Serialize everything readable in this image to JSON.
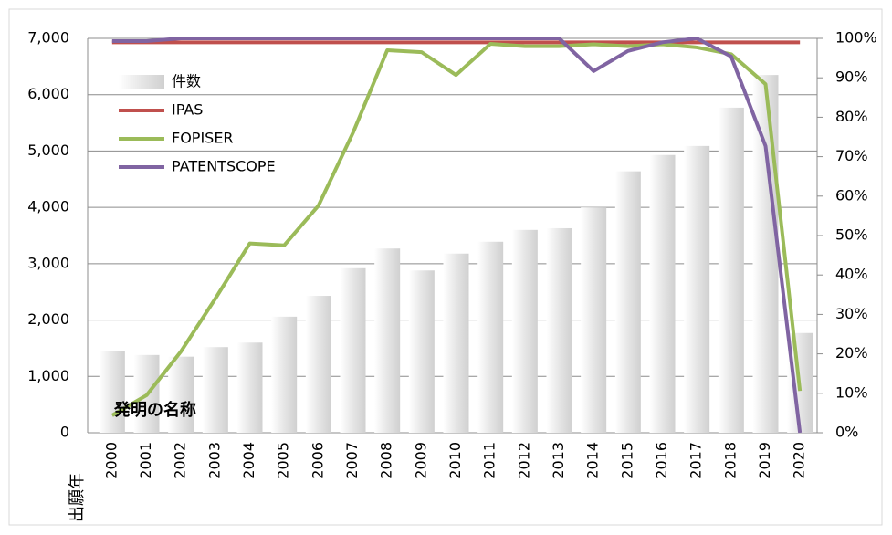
{
  "chart_data": {
    "type": "bar_line",
    "x_label": "出願年",
    "annotation": "発明の名称",
    "categories": [
      "2000",
      "2001",
      "2002",
      "2003",
      "2004",
      "2005",
      "2006",
      "2007",
      "2008",
      "2009",
      "2010",
      "2011",
      "2012",
      "2013",
      "2014",
      "2015",
      "2016",
      "2017",
      "2018",
      "2019",
      "2020"
    ],
    "series": [
      {
        "name": "件数",
        "type": "bar",
        "color": "#d9d9d9",
        "values": [
          1450,
          1380,
          1350,
          1520,
          1600,
          2060,
          2430,
          2920,
          3270,
          2880,
          3180,
          3390,
          3600,
          3630,
          4000,
          4640,
          4930,
          5090,
          5770,
          6350,
          1770
        ]
      },
      {
        "name": "IPAS",
        "type": "line",
        "axis": "y2",
        "color": "#c0504d",
        "values": [
          99,
          99,
          99,
          99,
          99,
          99,
          99,
          99,
          99,
          99,
          99,
          99,
          99,
          99,
          99,
          99,
          99,
          99,
          99,
          99,
          99
        ]
      },
      {
        "name": "FOPISER",
        "type": "line",
        "axis": "y2",
        "color": "#9bbb59",
        "values": [
          4.4,
          9.5,
          20.6,
          34,
          48,
          47.5,
          57.6,
          76,
          97,
          96.5,
          90.7,
          98.6,
          98,
          98,
          98.5,
          98,
          98.5,
          97.7,
          96,
          88.4,
          10.6
        ]
      },
      {
        "name": "PATENTSCOPE",
        "type": "line",
        "axis": "y2",
        "color": "#8064a2",
        "values": [
          99.3,
          99.3,
          100,
          100,
          100,
          100,
          100,
          100,
          100,
          100,
          100,
          100,
          100,
          100,
          91.7,
          96.8,
          99,
          100,
          95.4,
          72.7,
          0
        ]
      }
    ],
    "ylim": [
      0,
      7000
    ],
    "yticks": [
      0,
      {
        "value": 1000,
        "label": "1,000"
      },
      {
        "value": 2000,
        "label": "2,000"
      },
      {
        "value": 3000,
        "label": "3,000"
      },
      {
        "value": 4000,
        "label": "4,000"
      },
      {
        "value": 5000,
        "label": "5,000"
      },
      {
        "value": 6000,
        "label": "6,000"
      },
      {
        "value": 7000,
        "label": "7,000"
      }
    ],
    "y2lim": [
      0,
      100
    ],
    "y2ticks": [
      {
        "value": 0,
        "label": "0%"
      },
      {
        "value": 10,
        "label": "10%"
      },
      {
        "value": 20,
        "label": "20%"
      },
      {
        "value": 30,
        "label": "30%"
      },
      {
        "value": 40,
        "label": "40%"
      },
      {
        "value": 50,
        "label": "50%"
      },
      {
        "value": 60,
        "label": "60%"
      },
      {
        "value": 70,
        "label": "70%"
      },
      {
        "value": 80,
        "label": "80%"
      },
      {
        "value": 90,
        "label": "90%"
      },
      {
        "value": 100,
        "label": "100%"
      }
    ],
    "grid": true,
    "legend": "upper left"
  }
}
